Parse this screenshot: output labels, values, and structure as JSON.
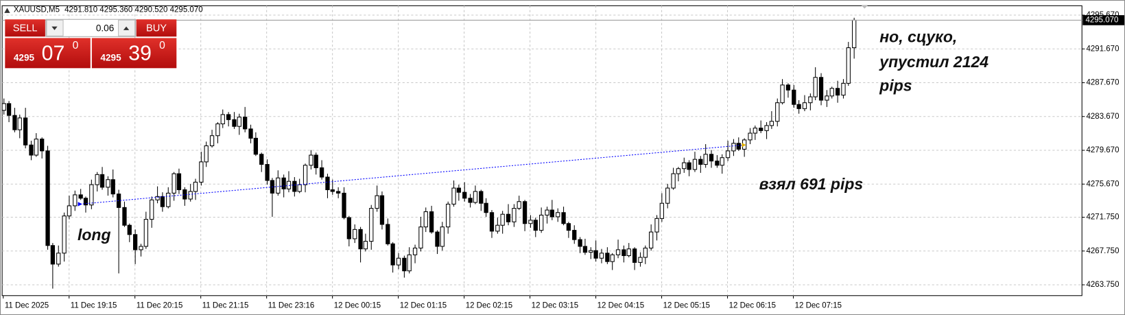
{
  "header": {
    "symbol": "XAUUSD,M5",
    "ohlc": "4291.810 4295.360 4290.520 4295.070"
  },
  "trade_panel": {
    "sell_label": "SELL",
    "buy_label": "BUY",
    "volume": "0.06",
    "sell_price": {
      "big": "4295",
      "main": "07",
      "small": "0"
    },
    "buy_price": {
      "big": "4295",
      "main": "39",
      "small": "0"
    }
  },
  "annotations": {
    "long": "long",
    "took": "взял 691 pips",
    "missed": [
      "но, сцуко,",
      "упустил 2124",
      "pips"
    ]
  },
  "chart_data": {
    "type": "candlestick",
    "up_color": "#ffffff",
    "down_color": "#000000",
    "line_color": "#000000",
    "grid": true,
    "ylim": [
      4262.47,
      4296.78
    ],
    "yticks": [
      {
        "value": 4263.75,
        "label": "4263.750"
      },
      {
        "value": 4267.75,
        "label": "4267.750"
      },
      {
        "value": 4271.75,
        "label": "4271.750"
      },
      {
        "value": 4275.67,
        "label": "4275.670"
      },
      {
        "value": 4279.67,
        "label": "4279.670"
      },
      {
        "value": 4283.67,
        "label": "4283.670"
      },
      {
        "value": 4287.67,
        "label": "4287.670"
      },
      {
        "value": 4291.67,
        "label": "4291.670"
      },
      {
        "value": 4295.67,
        "label": "4295.670"
      }
    ],
    "xlim": [
      -0.2,
      196.6
    ],
    "xticks": [
      {
        "value": 0,
        "label": "11 Dec 2025"
      },
      {
        "value": 12,
        "label": "11 Dec 19:15"
      },
      {
        "value": 24,
        "label": "11 Dec 20:15"
      },
      {
        "value": 36,
        "label": "11 Dec 21:15"
      },
      {
        "value": 48,
        "label": "11 Dec 23:16"
      },
      {
        "value": 60,
        "label": "12 Dec 00:15"
      },
      {
        "value": 72,
        "label": "12 Dec 01:15"
      },
      {
        "value": 84,
        "label": "12 Dec 02:15"
      },
      {
        "value": 96,
        "label": "12 Dec 03:15"
      },
      {
        "value": 108,
        "label": "12 Dec 04:15"
      },
      {
        "value": 120,
        "label": "12 Dec 05:15"
      },
      {
        "value": 132,
        "label": "12 Dec 06:15"
      },
      {
        "value": 144,
        "label": "12 Dec 07:15"
      }
    ],
    "current_price": {
      "value": 4295.07,
      "label": "4295.070"
    },
    "trendline": {
      "color": "#0000ff",
      "x": [
        14,
        135
      ],
      "y": [
        4273.3,
        4280.3
      ]
    },
    "open": [
      4284.4,
      4285.2,
      4283.8,
      4282.1,
      4283.5,
      4280.3,
      4279.1,
      4281.0,
      4279.6,
      4268.4,
      4266.2,
      4267.5,
      4271.9,
      4273.1,
      4274.4,
      4274.0,
      4273.2,
      4275.6,
      4276.8,
      4275.3,
      4276.2,
      4274.5,
      4272.9,
      4270.8,
      4269.7,
      4267.9,
      4268.3,
      4271.5,
      4273.8,
      4274.2,
      4273.0,
      4274.6,
      4276.9,
      4275.0,
      4273.9,
      4274.8,
      4275.9,
      4278.3,
      4280.2,
      4281.4,
      4282.8,
      4283.9,
      4283.3,
      4282.5,
      4283.6,
      4282.2,
      4281.1,
      4279.2,
      4278.0,
      4276.1,
      4274.6,
      4276.4,
      4275.1,
      4276.0,
      4274.8,
      4275.6,
      4277.9,
      4279.1,
      4277.6,
      4276.5,
      4275.0,
      4274.8,
      4274.6,
      4271.7,
      4269.2,
      4270.3,
      4268.0,
      4268.9,
      4272.8,
      4274.3,
      4270.9,
      4268.6,
      4266.1,
      4266.9,
      4265.4,
      4267.3,
      4268.1,
      4270.6,
      4272.4,
      4270.0,
      4268.3,
      4270.6,
      4273.3,
      4275.2,
      4274.7,
      4274.0,
      4273.5,
      4274.8,
      4273.4,
      4272.3,
      4270.1,
      4270.8,
      4272.1,
      4271.2,
      4272.8,
      4273.6,
      4271.0,
      4271.4,
      4270.2,
      4272.0,
      4272.6,
      4271.8,
      4272.3,
      4271.0,
      4270.2,
      4269.1,
      4268.3,
      4267.6,
      4267.8,
      4266.9,
      4267.5,
      4266.5,
      4267.3,
      4267.9,
      4267.2,
      4268.0,
      4266.4,
      4267.0,
      4268.1,
      4270.0,
      4271.6,
      4273.4,
      4275.2,
      4276.9,
      4277.5,
      4278.2,
      4277.4,
      4278.6,
      4278.0,
      4279.2,
      4278.4,
      4277.9,
      4278.8,
      4279.6,
      4280.5,
      4279.8,
      4280.9,
      4281.7,
      4282.3,
      4282.0,
      4282.6,
      4283.1,
      4285.3,
      4287.4,
      4286.8,
      4285.1,
      4284.6,
      4285.3,
      4286.0,
      4288.3,
      4285.6,
      4286.1,
      4287.0,
      4286.2,
      4287.6,
      4291.81
    ],
    "high": [
      4285.8,
      4285.5,
      4284.7,
      4283.9,
      4284.7,
      4280.8,
      4281.7,
      4281.2,
      4280.2,
      4268.7,
      4268.4,
      4272.3,
      4274.3,
      4274.9,
      4275.1,
      4274.2,
      4276.2,
      4277.1,
      4277.7,
      4276.6,
      4277.4,
      4275.0,
      4273.6,
      4271.0,
      4270.3,
      4268.6,
      4272.4,
      4274.2,
      4275.4,
      4274.7,
      4275.3,
      4277.1,
      4277.5,
      4275.3,
      4275.7,
      4276.3,
      4279.5,
      4280.7,
      4282.1,
      4283.0,
      4284.5,
      4284.2,
      4284.2,
      4284.0,
      4284.8,
      4282.7,
      4281.8,
      4279.4,
      4278.6,
      4276.4,
      4277.3,
      4276.8,
      4277.2,
      4276.5,
      4276.3,
      4278.1,
      4279.7,
      4279.4,
      4278.5,
      4276.9,
      4276.2,
      4275.3,
      4275.3,
      4271.9,
      4270.9,
      4270.6,
      4269.8,
      4273.2,
      4275.5,
      4274.8,
      4271.6,
      4268.8,
      4267.5,
      4267.2,
      4268.2,
      4268.5,
      4271.8,
      4272.9,
      4273.1,
      4270.2,
      4271.2,
      4273.6,
      4276.1,
      4275.6,
      4275.9,
      4274.5,
      4275.5,
      4275.0,
      4274.0,
      4272.6,
      4271.7,
      4272.5,
      4273.3,
      4273.3,
      4274.3,
      4273.8,
      4272.0,
      4271.7,
      4272.9,
      4273.0,
      4273.8,
      4272.8,
      4273.0,
      4271.2,
      4270.8,
      4269.4,
      4269.2,
      4268.2,
      4269.0,
      4268.0,
      4268.2,
      4267.5,
      4269.1,
      4268.4,
      4268.7,
      4268.2,
      4267.6,
      4268.4,
      4270.9,
      4272.0,
      4274.6,
      4275.7,
      4277.6,
      4277.7,
      4278.8,
      4278.5,
      4279.5,
      4279.0,
      4280.4,
      4279.7,
      4279.1,
      4279.2,
      4280.8,
      4281.0,
      4281.2,
      4281.1,
      4282.3,
      4282.6,
      4283.2,
      4283.0,
      4284.3,
      4285.8,
      4288.1,
      4287.6,
      4287.4,
      4285.6,
      4286.2,
      4286.4,
      4289.5,
      4288.8,
      4286.8,
      4287.2,
      4287.9,
      4288.1,
      4292.5,
      4295.36
    ],
    "low": [
      4283.9,
      4283.0,
      4281.8,
      4281.1,
      4279.9,
      4278.5,
      4278.9,
      4278.7,
      4267.9,
      4263.3,
      4265.9,
      4266.5,
      4271.5,
      4272.5,
      4273.8,
      4272.3,
      4272.7,
      4274.8,
      4275.0,
      4274.3,
      4274.1,
      4265.1,
      4270.6,
      4268.8,
      4266.2,
      4267.1,
      4268.0,
      4270.5,
      4273.4,
      4272.4,
      4272.8,
      4273.7,
      4274.5,
      4273.1,
      4273.6,
      4273.8,
      4275.5,
      4277.7,
      4280.0,
      4280.5,
      4282.3,
      4282.5,
      4282.2,
      4281.5,
      4281.8,
      4280.5,
      4279.0,
      4277.1,
      4275.6,
      4271.8,
      4274.3,
      4274.1,
      4274.7,
      4274.2,
      4274.6,
      4274.7,
      4277.4,
      4276.8,
      4276.2,
      4274.0,
      4274.4,
      4274.0,
      4271.5,
      4268.3,
      4268.7,
      4266.4,
      4267.7,
      4267.9,
      4272.4,
      4270.3,
      4268.4,
      4265.2,
      4265.6,
      4264.6,
      4265.1,
      4266.3,
      4267.7,
      4270.0,
      4269.8,
      4267.4,
      4267.8,
      4269.8,
      4273.0,
      4273.7,
      4273.6,
      4272.9,
      4273.3,
      4272.5,
      4271.8,
      4269.3,
      4269.8,
      4269.8,
      4270.8,
      4270.6,
      4272.6,
      4270.1,
      4270.5,
      4269.4,
      4269.9,
      4271.0,
      4271.4,
      4271.2,
      4270.8,
      4269.3,
      4268.6,
      4267.5,
      4267.3,
      4266.8,
      4266.5,
      4266.3,
      4266.2,
      4265.5,
      4266.9,
      4266.4,
      4267.0,
      4265.5,
      4265.9,
      4266.2,
      4267.8,
      4269.0,
      4271.2,
      4272.8,
      4275.0,
      4276.0,
      4277.0,
      4276.6,
      4277.1,
      4277.0,
      4277.6,
      4277.6,
      4277.6,
      4276.9,
      4278.4,
      4279.0,
      4279.6,
      4278.9,
      4280.4,
      4280.9,
      4281.7,
      4281.0,
      4282.2,
      4282.5,
      4285.1,
      4285.9,
      4284.7,
      4284.0,
      4284.3,
      4284.4,
      4285.6,
      4285.0,
      4284.8,
      4285.8,
      4285.3,
      4285.8,
      4287.3,
      4290.52
    ],
    "close": [
      4285.2,
      4283.8,
      4282.1,
      4283.5,
      4280.3,
      4279.1,
      4281.0,
      4279.6,
      4268.4,
      4266.2,
      4267.5,
      4271.9,
      4273.1,
      4274.4,
      4274.0,
      4273.2,
      4275.6,
      4276.8,
      4275.3,
      4276.2,
      4274.5,
      4272.9,
      4270.8,
      4269.7,
      4267.9,
      4268.3,
      4271.5,
      4273.8,
      4274.2,
      4273.0,
      4274.6,
      4276.9,
      4275.0,
      4273.9,
      4274.8,
      4275.9,
      4278.3,
      4280.2,
      4281.4,
      4282.8,
      4283.9,
      4283.3,
      4282.5,
      4283.6,
      4282.2,
      4281.1,
      4279.2,
      4278.0,
      4276.1,
      4274.6,
      4276.4,
      4275.1,
      4276.0,
      4274.8,
      4275.6,
      4277.9,
      4279.1,
      4277.6,
      4276.5,
      4275.0,
      4274.8,
      4274.6,
      4271.7,
      4269.2,
      4270.3,
      4268.0,
      4268.9,
      4272.8,
      4274.3,
      4270.9,
      4268.6,
      4266.1,
      4266.9,
      4265.4,
      4267.3,
      4268.1,
      4270.6,
      4272.4,
      4270.0,
      4268.3,
      4270.6,
      4273.3,
      4275.2,
      4274.7,
      4274.0,
      4273.5,
      4274.8,
      4273.4,
      4272.3,
      4270.1,
      4270.8,
      4272.1,
      4271.2,
      4272.8,
      4273.6,
      4271.0,
      4271.4,
      4270.2,
      4272.0,
      4272.6,
      4271.8,
      4272.3,
      4271.0,
      4270.2,
      4269.1,
      4268.3,
      4267.6,
      4267.8,
      4266.9,
      4267.5,
      4266.5,
      4267.3,
      4267.9,
      4267.2,
      4268.0,
      4266.4,
      4267.0,
      4268.1,
      4270.0,
      4271.6,
      4273.4,
      4275.2,
      4276.9,
      4277.5,
      4278.2,
      4277.4,
      4278.6,
      4278.0,
      4279.2,
      4278.4,
      4277.9,
      4278.8,
      4279.6,
      4280.5,
      4279.8,
      4280.9,
      4281.7,
      4282.3,
      4282.0,
      4282.6,
      4283.1,
      4285.3,
      4287.4,
      4286.8,
      4285.1,
      4284.6,
      4285.3,
      4286.0,
      4288.3,
      4285.6,
      4286.1,
      4287.0,
      4286.2,
      4287.6,
      4291.81,
      4295.07
    ]
  }
}
